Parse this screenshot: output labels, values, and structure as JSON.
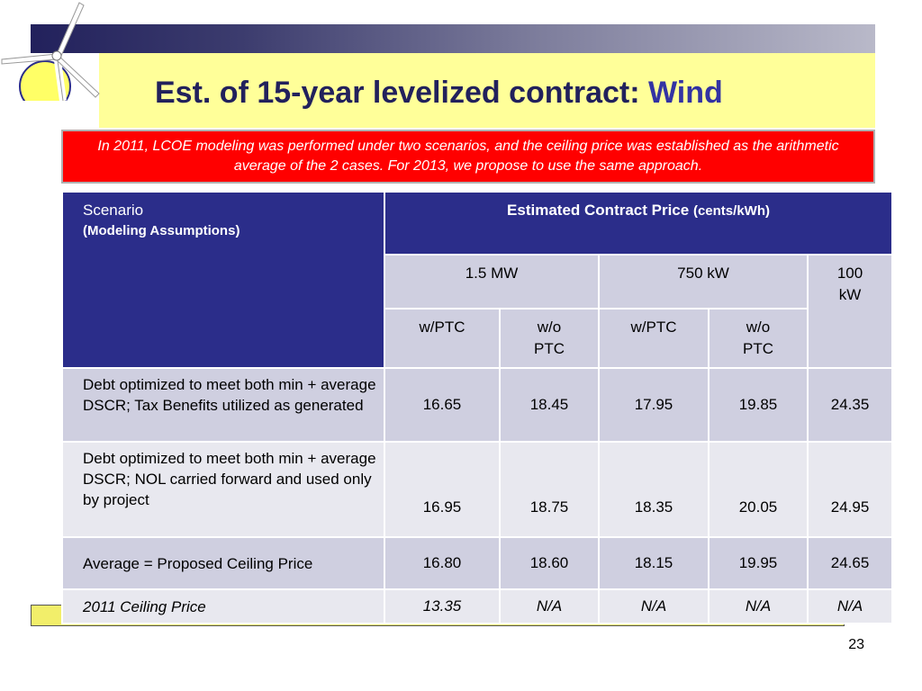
{
  "slide": {
    "title_main": "Est. of 15-year levelized contract:",
    "title_accent": "Wind",
    "note": "In 2011, LCOE modeling was performed under two scenarios, and the ceiling price was established as the arithmetic average of the 2 cases.  For 2013, we propose to use the same approach.",
    "page_number": "23"
  },
  "table": {
    "scenario_header": "Scenario",
    "scenario_subheader": "(Modeling Assumptions)",
    "price_header": "Estimated Contract Price",
    "price_unit": "(cents/kWh)",
    "groups": [
      "1.5 MW",
      "750 kW",
      "100 kW"
    ],
    "subcols": [
      "w/PTC",
      "w/o PTC",
      "w/PTC",
      "w/o PTC"
    ],
    "rows": [
      {
        "label": "Debt optimized to meet both min + average DSCR; Tax Benefits utilized as generated",
        "values": [
          "16.65",
          "18.45",
          "17.95",
          "19.85",
          "24.35"
        ]
      },
      {
        "label": "Debt optimized to meet both min + average DSCR; NOL carried forward and used only by project",
        "values": [
          "16.95",
          "18.75",
          "18.35",
          "20.05",
          "24.95"
        ]
      },
      {
        "label": "Average = Proposed Ceiling Price",
        "values": [
          "16.80",
          "18.60",
          "18.15",
          "19.95",
          "24.65"
        ]
      },
      {
        "label": "2011 Ceiling Price",
        "values": [
          "13.35",
          "N/A",
          "N/A",
          "N/A",
          "N/A"
        ]
      }
    ]
  },
  "colors": {
    "header_navy": "#2b2d8a",
    "title_navy": "#22215c",
    "note_red": "#ff0000",
    "title_band": "#ffff99"
  },
  "icons": [
    "wind-turbine-icon"
  ]
}
